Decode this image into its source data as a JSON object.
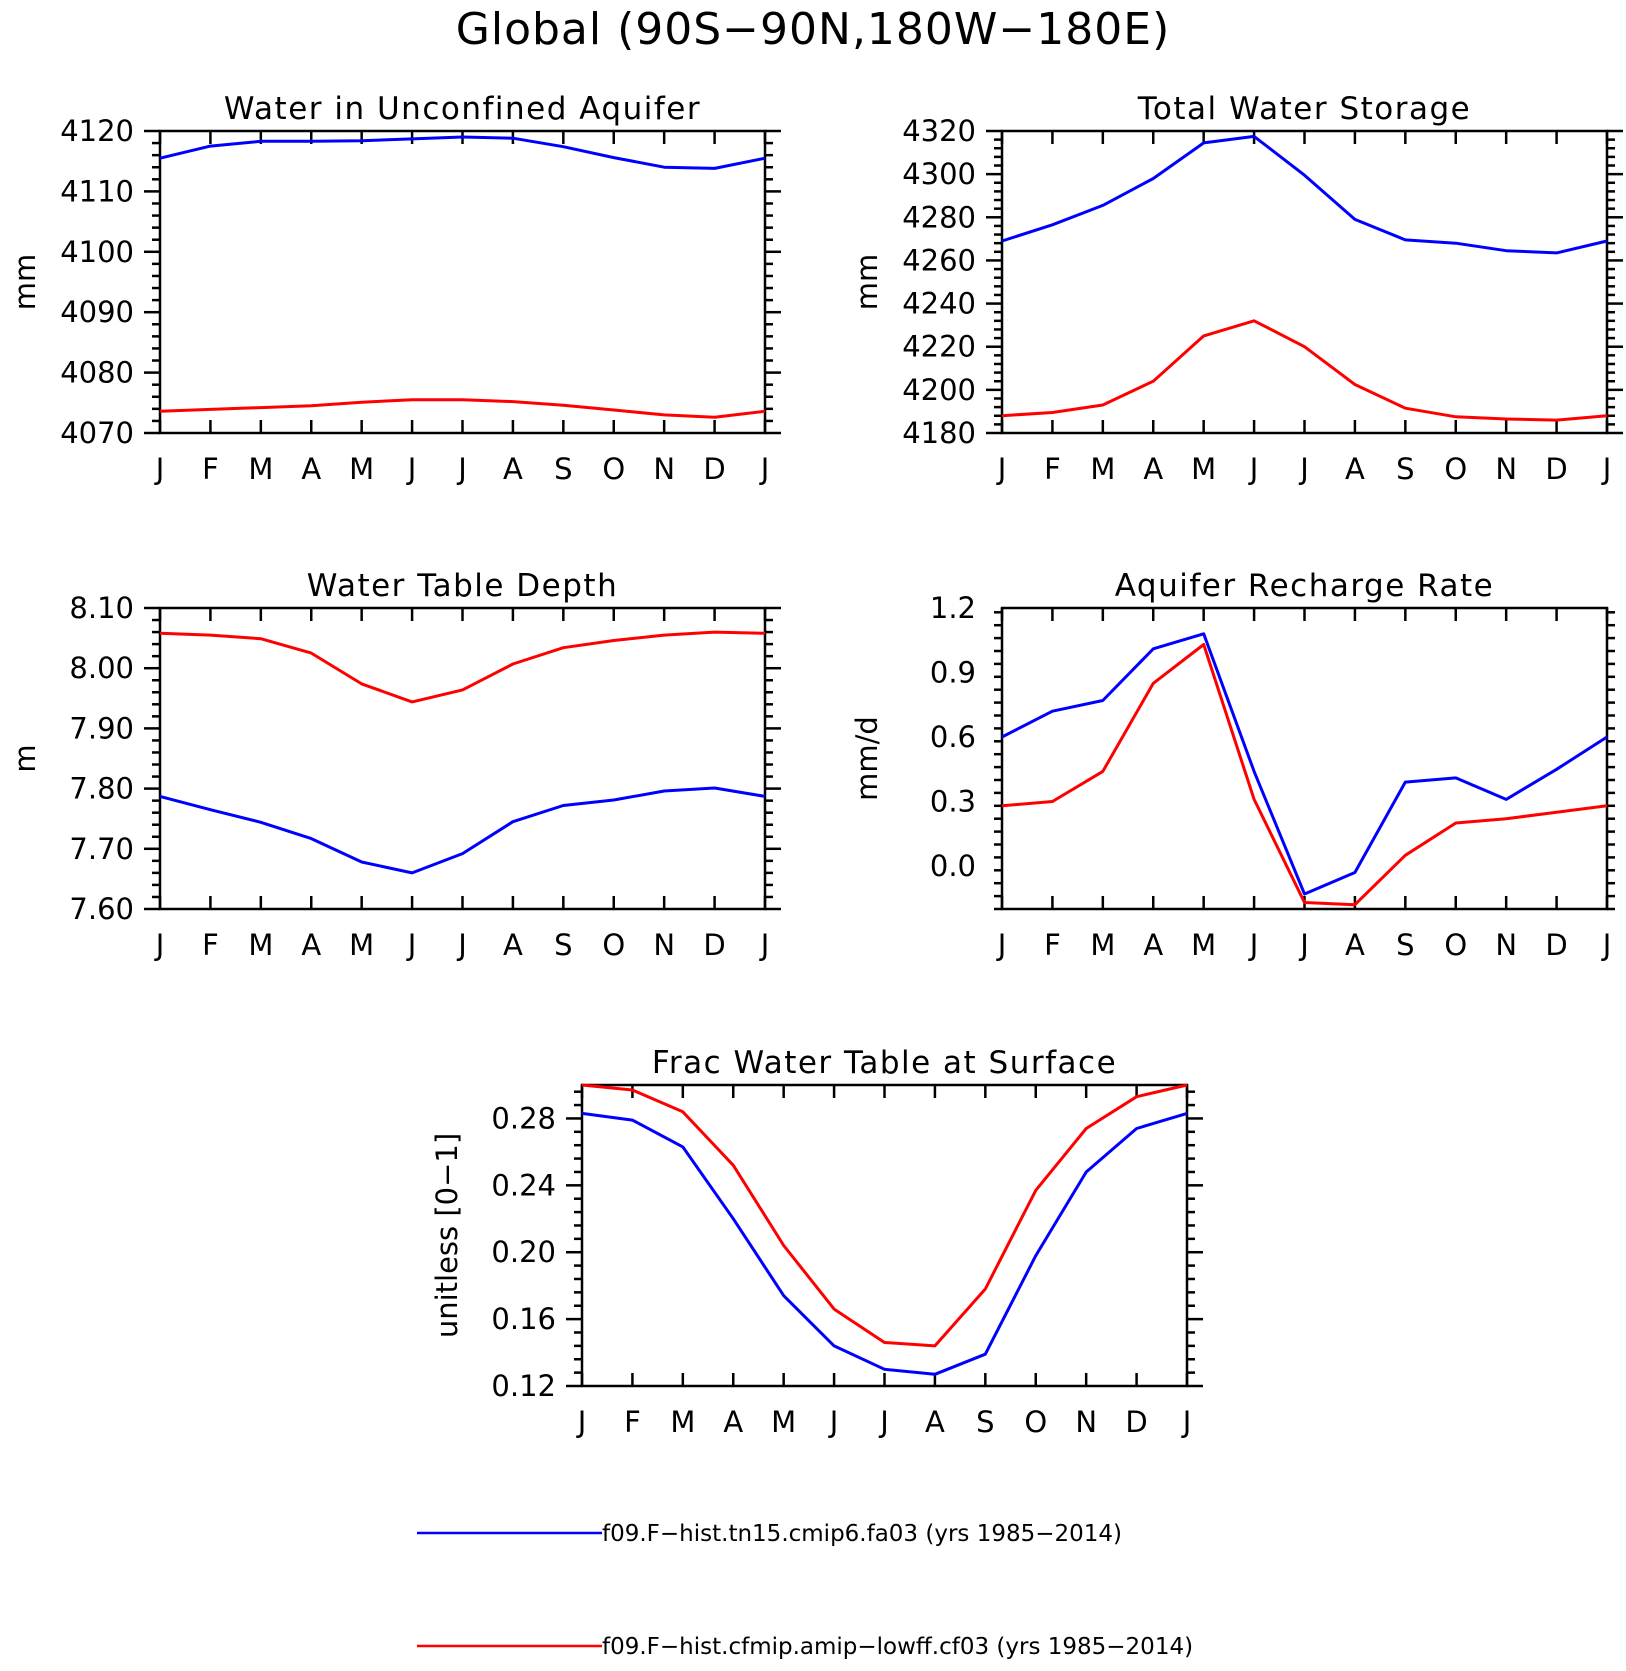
{
  "title": "Global (90S−90N,180W−180E)",
  "colors": {
    "series_1": "#0000ff",
    "series_2": "#ff0000",
    "axis": "#000000"
  },
  "legend": [
    {
      "label": "f09.F−hist.tn15.cmip6.fa03 (yrs 1985−2014)",
      "color": "#0000ff"
    },
    {
      "label": "f09.F−hist.cfmip.amip−lowff.cf03 (yrs 1985−2014)",
      "color": "#ff0000"
    }
  ],
  "chart_data": [
    {
      "type": "line",
      "title": "Water in Unconfined Aquifer",
      "ylabel": "mm",
      "categories": [
        "J",
        "F",
        "M",
        "A",
        "M",
        "J",
        "J",
        "A",
        "S",
        "O",
        "N",
        "D",
        "J"
      ],
      "ylim": [
        4070,
        4120
      ],
      "yticks": [
        4070,
        4080,
        4090,
        4100,
        4110,
        4120
      ],
      "ytick_labels": [
        "4070",
        "4080",
        "4090",
        "4100",
        "4110",
        "4120"
      ],
      "series": [
        {
          "color": "#0000ff",
          "values": [
            4115.5,
            4117.5,
            4118.3,
            4118.3,
            4118.4,
            4118.7,
            4119.0,
            4118.8,
            4117.4,
            4115.6,
            4114.0,
            4113.8,
            4115.5
          ]
        },
        {
          "color": "#ff0000",
          "values": [
            4073.6,
            4073.9,
            4074.2,
            4074.5,
            4075.1,
            4075.5,
            4075.5,
            4075.2,
            4074.6,
            4073.8,
            4073.0,
            4072.6,
            4073.6
          ]
        }
      ]
    },
    {
      "type": "line",
      "title": "Total Water Storage",
      "ylabel": "mm",
      "categories": [
        "J",
        "F",
        "M",
        "A",
        "M",
        "J",
        "J",
        "A",
        "S",
        "O",
        "N",
        "D",
        "J"
      ],
      "ylim": [
        4180,
        4320
      ],
      "yticks": [
        4180,
        4200,
        4220,
        4240,
        4260,
        4280,
        4300,
        4320
      ],
      "ytick_labels": [
        "4180",
        "4200",
        "4220",
        "4240",
        "4260",
        "4280",
        "4300",
        "4320"
      ],
      "series": [
        {
          "color": "#0000ff",
          "values": [
            4269,
            4276.5,
            4285.5,
            4298,
            4314.5,
            4317.5,
            4299.5,
            4279,
            4269.5,
            4268,
            4264.5,
            4263.5,
            4269
          ]
        },
        {
          "color": "#ff0000",
          "values": [
            4188,
            4189.5,
            4193,
            4204,
            4225,
            4232,
            4220,
            4202.5,
            4191.5,
            4187.5,
            4186.5,
            4186,
            4188
          ]
        }
      ]
    },
    {
      "type": "line",
      "title": "Water Table Depth",
      "ylabel": "m",
      "categories": [
        "J",
        "F",
        "M",
        "A",
        "M",
        "J",
        "J",
        "A",
        "S",
        "O",
        "N",
        "D",
        "J"
      ],
      "ylim": [
        7.6,
        8.1
      ],
      "yticks": [
        7.6,
        7.7,
        7.8,
        7.9,
        8.0,
        8.1
      ],
      "ytick_labels": [
        "7.60",
        "7.70",
        "7.80",
        "7.90",
        "8.00",
        "8.10"
      ],
      "series": [
        {
          "color": "#0000ff",
          "values": [
            7.787,
            7.765,
            7.744,
            7.717,
            7.678,
            7.66,
            7.692,
            7.745,
            7.772,
            7.781,
            7.796,
            7.801,
            7.787
          ]
        },
        {
          "color": "#ff0000",
          "values": [
            8.058,
            8.055,
            8.049,
            8.025,
            7.974,
            7.944,
            7.964,
            8.007,
            8.034,
            8.046,
            8.055,
            8.06,
            8.058
          ]
        }
      ]
    },
    {
      "type": "line",
      "title": "Aquifer Recharge Rate",
      "ylabel": "mm/d",
      "categories": [
        "J",
        "F",
        "M",
        "A",
        "M",
        "J",
        "J",
        "A",
        "S",
        "O",
        "N",
        "D",
        "J"
      ],
      "ylim": [
        -0.2,
        1.2
      ],
      "yticks": [
        0.0,
        0.3,
        0.6,
        0.9,
        1.2
      ],
      "ytick_labels": [
        "0.0",
        "0.3",
        "0.6",
        "0.9",
        "1.2"
      ],
      "series": [
        {
          "color": "#0000ff",
          "values": [
            0.6,
            0.72,
            0.77,
            1.01,
            1.08,
            0.44,
            -0.13,
            -0.03,
            0.39,
            0.41,
            0.31,
            0.45,
            0.6
          ]
        },
        {
          "color": "#ff0000",
          "values": [
            0.28,
            0.3,
            0.44,
            0.85,
            1.03,
            0.31,
            -0.17,
            -0.18,
            0.05,
            0.2,
            0.22,
            0.25,
            0.28
          ]
        }
      ]
    },
    {
      "type": "line",
      "title": "Frac Water Table at Surface",
      "ylabel": "unitless [0−1]",
      "categories": [
        "J",
        "F",
        "M",
        "A",
        "M",
        "J",
        "J",
        "A",
        "S",
        "O",
        "N",
        "D",
        "J"
      ],
      "ylim": [
        0.12,
        0.3
      ],
      "yticks": [
        0.12,
        0.16,
        0.2,
        0.24,
        0.28
      ],
      "ytick_labels": [
        "0.12",
        "0.16",
        "0.20",
        "0.24",
        "0.28"
      ],
      "series": [
        {
          "color": "#0000ff",
          "values": [
            0.283,
            0.279,
            0.263,
            0.22,
            0.174,
            0.144,
            0.13,
            0.127,
            0.139,
            0.198,
            0.248,
            0.274,
            0.283
          ]
        },
        {
          "color": "#ff0000",
          "values": [
            0.3,
            0.297,
            0.284,
            0.252,
            0.204,
            0.166,
            0.146,
            0.144,
            0.178,
            0.237,
            0.274,
            0.293,
            0.3
          ]
        }
      ]
    }
  ]
}
